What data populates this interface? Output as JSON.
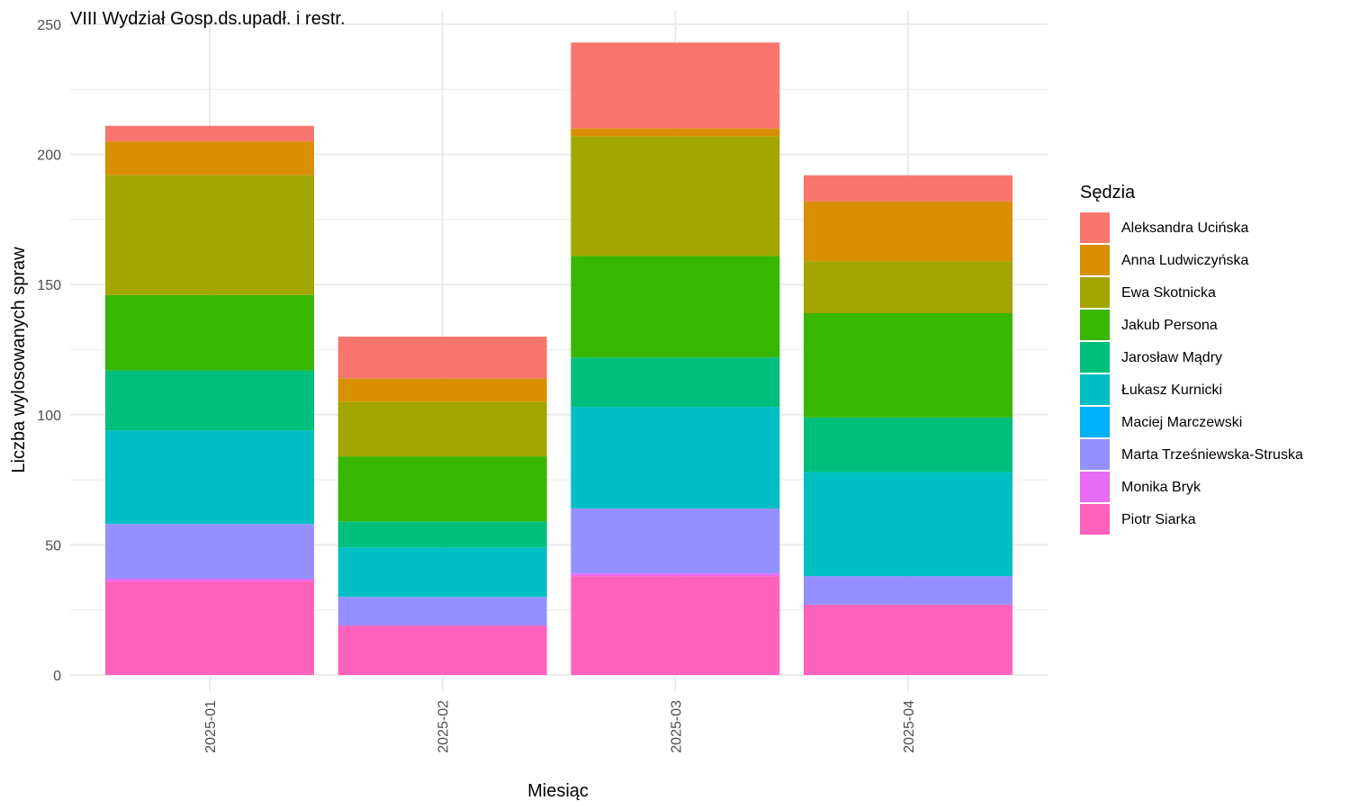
{
  "chart_data": {
    "type": "bar",
    "stacked": true,
    "title": "VIII Wydział Gosp.ds.upadł. i restr.",
    "xlabel": "Miesiąc",
    "ylabel": "Liczba wylosowanych spraw",
    "ylim": [
      0,
      250
    ],
    "yticks": [
      0,
      50,
      100,
      150,
      200,
      250
    ],
    "grid": true,
    "legend_position": "right",
    "legend_title": "Sędzia",
    "categories": [
      "2025-01",
      "2025-02",
      "2025-03",
      "2025-04"
    ],
    "series": [
      {
        "name": "Aleksandra Ucińska",
        "color": "#F8766D",
        "values": [
          6,
          16,
          33,
          10
        ]
      },
      {
        "name": "Anna Ludwiczyńska",
        "color": "#D89000",
        "values": [
          13,
          9,
          3,
          23
        ]
      },
      {
        "name": "Ewa Skotnicka",
        "color": "#A3A500",
        "values": [
          46,
          21,
          46,
          20
        ]
      },
      {
        "name": "Jakub Persona",
        "color": "#39B600",
        "values": [
          29,
          25,
          39,
          40
        ]
      },
      {
        "name": "Jarosław Mądry",
        "color": "#00BF7D",
        "values": [
          23,
          10,
          19,
          21
        ]
      },
      {
        "name": "Łukasz Kurnicki",
        "color": "#00BFC4",
        "values": [
          36,
          19,
          39,
          40
        ]
      },
      {
        "name": "Maciej Marczewski",
        "color": "#00B0F6",
        "values": [
          0,
          0,
          0,
          0
        ]
      },
      {
        "name": "Marta Trześniewska-Struska",
        "color": "#9590FF",
        "values": [
          21,
          11,
          25,
          11
        ]
      },
      {
        "name": "Monika Bryk",
        "color": "#E76BF3",
        "values": [
          1,
          0,
          1,
          0
        ]
      },
      {
        "name": "Piotr Siarka",
        "color": "#FF62BC",
        "values": [
          36,
          19,
          38,
          27
        ]
      }
    ]
  }
}
